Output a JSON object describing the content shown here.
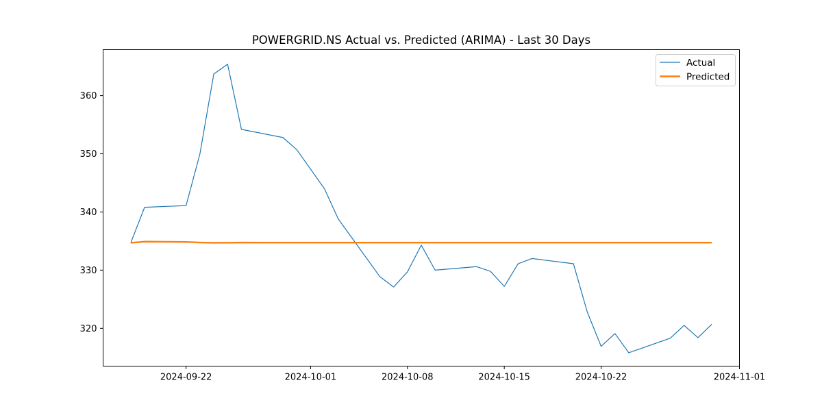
{
  "chart_data": {
    "type": "line",
    "title": "POWERGRID.NS Actual vs. Predicted (ARIMA) - Last 30 Days",
    "xlabel": "",
    "ylabel": "",
    "x_axis_type": "date",
    "xlim": [
      "2024-09-16",
      "2024-11-01"
    ],
    "ylim": [
      313.5,
      367.9
    ],
    "x_ticks": [
      "2024-09-22",
      "2024-10-01",
      "2024-10-08",
      "2024-10-15",
      "2024-10-22",
      "2024-11-01"
    ],
    "y_ticks": [
      320,
      330,
      340,
      350,
      360
    ],
    "grid": false,
    "legend_position": "top-right",
    "series": [
      {
        "name": "Actual",
        "color": "#1f77b4",
        "points": [
          {
            "x": "2024-09-18",
            "y": 334.7
          },
          {
            "x": "2024-09-19",
            "y": 340.8
          },
          {
            "x": "2024-09-22",
            "y": 341.1
          },
          {
            "x": "2024-09-23",
            "y": 350.0
          },
          {
            "x": "2024-09-24",
            "y": 363.7
          },
          {
            "x": "2024-09-25",
            "y": 365.4
          },
          {
            "x": "2024-09-26",
            "y": 354.2
          },
          {
            "x": "2024-09-29",
            "y": 352.8
          },
          {
            "x": "2024-09-30",
            "y": 350.7
          },
          {
            "x": "2024-10-02",
            "y": 344.0
          },
          {
            "x": "2024-10-03",
            "y": 338.8
          },
          {
            "x": "2024-10-06",
            "y": 328.9
          },
          {
            "x": "2024-10-07",
            "y": 327.1
          },
          {
            "x": "2024-10-08",
            "y": 329.7
          },
          {
            "x": "2024-10-09",
            "y": 334.3
          },
          {
            "x": "2024-10-10",
            "y": 330.0
          },
          {
            "x": "2024-10-13",
            "y": 330.6
          },
          {
            "x": "2024-10-14",
            "y": 329.8
          },
          {
            "x": "2024-10-15",
            "y": 327.2
          },
          {
            "x": "2024-10-16",
            "y": 331.1
          },
          {
            "x": "2024-10-17",
            "y": 332.0
          },
          {
            "x": "2024-10-20",
            "y": 331.1
          },
          {
            "x": "2024-10-21",
            "y": 322.8
          },
          {
            "x": "2024-10-22",
            "y": 316.9
          },
          {
            "x": "2024-10-23",
            "y": 319.1
          },
          {
            "x": "2024-10-24",
            "y": 315.8
          },
          {
            "x": "2024-10-27",
            "y": 318.3
          },
          {
            "x": "2024-10-28",
            "y": 320.5
          },
          {
            "x": "2024-10-29",
            "y": 318.4
          },
          {
            "x": "2024-10-30",
            "y": 320.7
          }
        ]
      },
      {
        "name": "Predicted",
        "color": "#ff7f0e",
        "points": [
          {
            "x": "2024-09-18",
            "y": 334.7
          },
          {
            "x": "2024-09-19",
            "y": 334.9
          },
          {
            "x": "2024-09-22",
            "y": 334.85
          },
          {
            "x": "2024-09-23",
            "y": 334.75
          },
          {
            "x": "2024-09-24",
            "y": 334.7
          },
          {
            "x": "2024-09-25",
            "y": 334.72
          },
          {
            "x": "2024-09-26",
            "y": 334.74
          },
          {
            "x": "2024-09-29",
            "y": 334.73
          },
          {
            "x": "2024-09-30",
            "y": 334.73
          },
          {
            "x": "2024-10-02",
            "y": 334.73
          },
          {
            "x": "2024-10-03",
            "y": 334.73
          },
          {
            "x": "2024-10-06",
            "y": 334.73
          },
          {
            "x": "2024-10-07",
            "y": 334.73
          },
          {
            "x": "2024-10-08",
            "y": 334.73
          },
          {
            "x": "2024-10-09",
            "y": 334.73
          },
          {
            "x": "2024-10-10",
            "y": 334.73
          },
          {
            "x": "2024-10-13",
            "y": 334.73
          },
          {
            "x": "2024-10-14",
            "y": 334.73
          },
          {
            "x": "2024-10-15",
            "y": 334.73
          },
          {
            "x": "2024-10-16",
            "y": 334.73
          },
          {
            "x": "2024-10-17",
            "y": 334.73
          },
          {
            "x": "2024-10-20",
            "y": 334.73
          },
          {
            "x": "2024-10-21",
            "y": 334.73
          },
          {
            "x": "2024-10-22",
            "y": 334.73
          },
          {
            "x": "2024-10-23",
            "y": 334.73
          },
          {
            "x": "2024-10-24",
            "y": 334.73
          },
          {
            "x": "2024-10-27",
            "y": 334.73
          },
          {
            "x": "2024-10-28",
            "y": 334.73
          },
          {
            "x": "2024-10-29",
            "y": 334.73
          },
          {
            "x": "2024-10-30",
            "y": 334.73
          }
        ]
      }
    ]
  }
}
